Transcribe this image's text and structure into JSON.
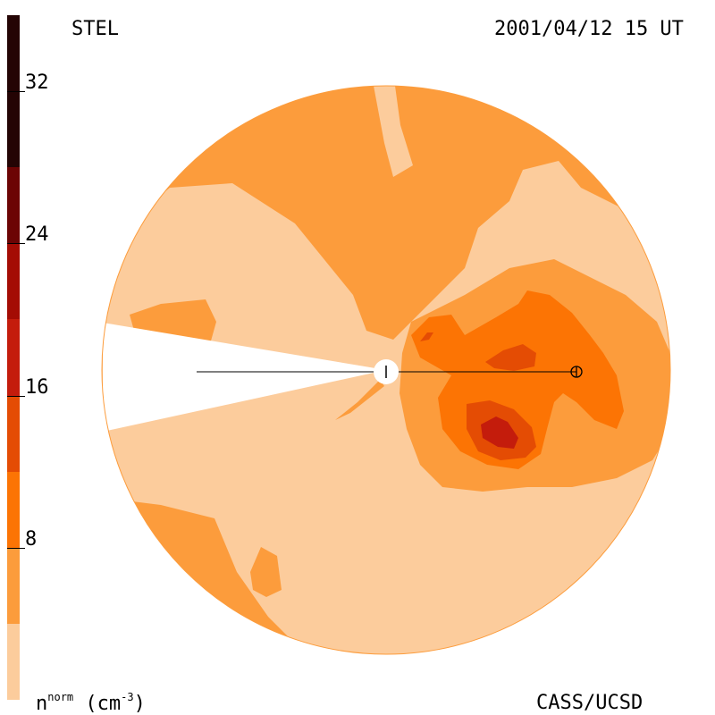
{
  "header": {
    "site": "STEL",
    "timestamp": "2001/04/12 15 UT"
  },
  "footer": {
    "credit": "CASS/UCSD",
    "units_base": "n",
    "units_sup": "norm",
    "units_rest": " (cm",
    "units_exp": "-3",
    "units_close": ")"
  },
  "colors": {
    "levels": [
      "#fccc9c",
      "#fc9c3c",
      "#fc7404",
      "#e44c04",
      "#c41c0c",
      "#a40c04",
      "#6c0404",
      "#240404"
    ],
    "occulter": "#ffffff",
    "line": "#000000"
  },
  "chart_data": {
    "type": "heatmap",
    "title": "STEL",
    "subtitle": "2001/04/12 15 UT",
    "colorbar": {
      "label": "n^norm (cm^-3)",
      "range": [
        0,
        36
      ],
      "ticks": [
        8,
        16,
        24,
        32
      ],
      "tick_labels": [
        "8",
        "16",
        "24",
        "32"
      ],
      "levels": [
        {
          "min": 0,
          "max": 4,
          "color": "#fccc9c"
        },
        {
          "min": 4,
          "max": 8,
          "color": "#fc9c3c"
        },
        {
          "min": 8,
          "max": 12,
          "color": "#fc7404"
        },
        {
          "min": 12,
          "max": 16,
          "color": "#e44c04"
        },
        {
          "min": 16,
          "max": 20,
          "color": "#c41c0c"
        },
        {
          "min": 20,
          "max": 24,
          "color": "#a40c04"
        },
        {
          "min": 24,
          "max": 28,
          "color": "#6c0404"
        },
        {
          "min": 28,
          "max": 36,
          "color": "#240404"
        }
      ]
    },
    "map": {
      "shape": "circular",
      "center_marker": "Sun",
      "earth_symbol": "⊕"
    }
  }
}
